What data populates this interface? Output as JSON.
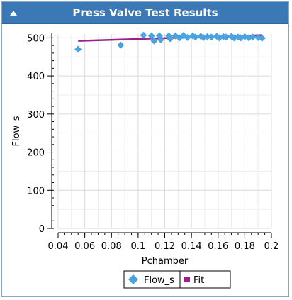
{
  "window": {
    "title": "Press Valve Test Results"
  },
  "colors": {
    "titlebar": "#3a78b6",
    "series_flow": "#4aa3df",
    "series_fit": "#9b1f86"
  },
  "chart_data": {
    "type": "scatter",
    "title": "",
    "xlabel": "Pchamber",
    "ylabel": "Flow_s",
    "xlim": [
      0.04,
      0.2
    ],
    "ylim": [
      0,
      510
    ],
    "xticks": [
      "0.04",
      "0.06",
      "0.08",
      "0.1",
      "0.12",
      "0.14",
      "0.16",
      "0.18",
      "0.2"
    ],
    "xtick_values": [
      0.04,
      0.06,
      0.08,
      0.1,
      0.12,
      0.14,
      0.16,
      0.18,
      0.2
    ],
    "yticks": [
      "0",
      "100",
      "200",
      "300",
      "400",
      "500"
    ],
    "ytick_values": [
      0,
      100,
      200,
      300,
      400,
      500
    ],
    "grid": true,
    "legend_position": "bottom-center",
    "series": [
      {
        "name": "Flow_s",
        "marker": "diamond",
        "points": [
          [
            0.055,
            470
          ],
          [
            0.087,
            481
          ],
          [
            0.104,
            507
          ],
          [
            0.11,
            505
          ],
          [
            0.112,
            492
          ],
          [
            0.116,
            505
          ],
          [
            0.117,
            495
          ],
          [
            0.123,
            505
          ],
          [
            0.124,
            498
          ],
          [
            0.128,
            505
          ],
          [
            0.131,
            500
          ],
          [
            0.134,
            506
          ],
          [
            0.137,
            501
          ],
          [
            0.141,
            505
          ],
          [
            0.143,
            502
          ],
          [
            0.147,
            504
          ],
          [
            0.149,
            501
          ],
          [
            0.152,
            503
          ],
          [
            0.155,
            502
          ],
          [
            0.159,
            504
          ],
          [
            0.161,
            500
          ],
          [
            0.164,
            503
          ],
          [
            0.166,
            502
          ],
          [
            0.17,
            504
          ],
          [
            0.172,
            500
          ],
          [
            0.175,
            502
          ],
          [
            0.177,
            500
          ],
          [
            0.18,
            503
          ],
          [
            0.183,
            500
          ],
          [
            0.186,
            502
          ],
          [
            0.19,
            501
          ],
          [
            0.193,
            499
          ]
        ]
      },
      {
        "name": "Fit",
        "marker": "line",
        "points": [
          [
            0.055,
            492
          ],
          [
            0.193,
            507
          ]
        ]
      }
    ]
  }
}
